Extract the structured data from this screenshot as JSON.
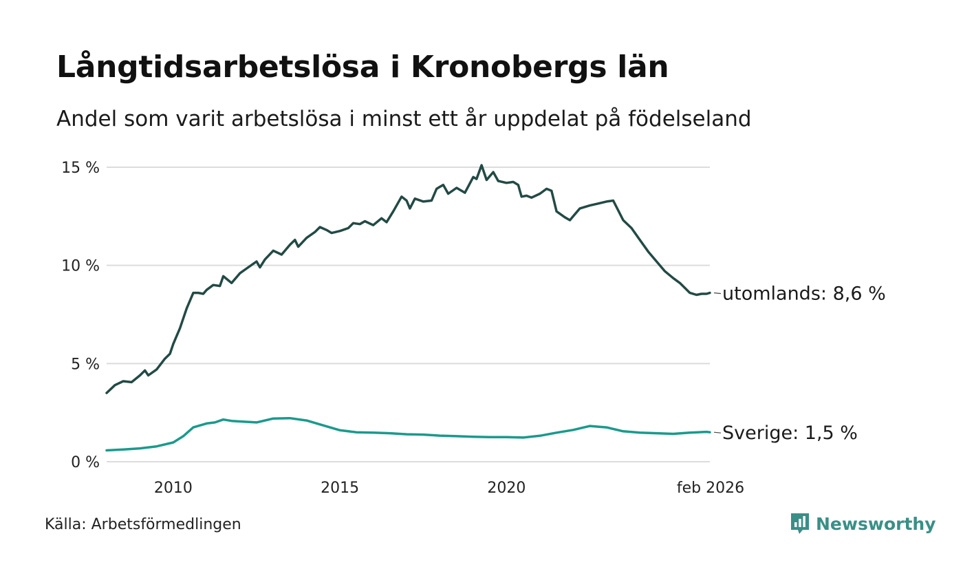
{
  "title": "Långtidsarbetslösa i Kronobergs län",
  "subtitle": "Andel som varit arbetslösa i minst ett år uppdelat på födelseland",
  "source": "Källa: Arbetsförmedlingen",
  "brand": {
    "name": "Newsworthy",
    "icon": "bar-chart-speech-bubble-icon",
    "color": "#3a8f86"
  },
  "chart_data": {
    "type": "line",
    "title": "Långtidsarbetslösa i Kronobergs län",
    "xlabel": "",
    "ylabel": "",
    "xlim": [
      2008.0,
      2026.1
    ],
    "ylim": [
      0,
      15
    ],
    "grid": true,
    "yticks": [
      {
        "value": 0,
        "label": "0 %"
      },
      {
        "value": 5,
        "label": "5 %"
      },
      {
        "value": 10,
        "label": "10 %"
      },
      {
        "value": 15,
        "label": "15 %"
      }
    ],
    "xticks": [
      {
        "value": 2010,
        "label": "2010"
      },
      {
        "value": 2015,
        "label": "2015"
      },
      {
        "value": 2020,
        "label": "2020"
      },
      {
        "value": 2026.1,
        "label": "feb 2026"
      }
    ],
    "series": [
      {
        "name": "utomlands",
        "color": "#234a44",
        "end_label": "utomlands: 8,6 %",
        "points": [
          [
            2008.0,
            3.5
          ],
          [
            2008.25,
            3.9
          ],
          [
            2008.5,
            4.1
          ],
          [
            2008.75,
            4.05
          ],
          [
            2009.0,
            4.4
          ],
          [
            2009.15,
            4.65
          ],
          [
            2009.25,
            4.4
          ],
          [
            2009.5,
            4.7
          ],
          [
            2009.75,
            5.25
          ],
          [
            2009.9,
            5.5
          ],
          [
            2010.0,
            6.0
          ],
          [
            2010.2,
            6.8
          ],
          [
            2010.4,
            7.8
          ],
          [
            2010.6,
            8.6
          ],
          [
            2010.75,
            8.6
          ],
          [
            2010.9,
            8.55
          ],
          [
            2011.0,
            8.75
          ],
          [
            2011.2,
            9.0
          ],
          [
            2011.4,
            8.95
          ],
          [
            2011.5,
            9.45
          ],
          [
            2011.75,
            9.1
          ],
          [
            2012.0,
            9.6
          ],
          [
            2012.25,
            9.9
          ],
          [
            2012.5,
            10.2
          ],
          [
            2012.6,
            9.9
          ],
          [
            2012.75,
            10.3
          ],
          [
            2013.0,
            10.75
          ],
          [
            2013.25,
            10.55
          ],
          [
            2013.5,
            11.05
          ],
          [
            2013.65,
            11.3
          ],
          [
            2013.75,
            10.95
          ],
          [
            2014.0,
            11.4
          ],
          [
            2014.25,
            11.7
          ],
          [
            2014.4,
            11.95
          ],
          [
            2014.6,
            11.8
          ],
          [
            2014.75,
            11.65
          ],
          [
            2015.0,
            11.75
          ],
          [
            2015.25,
            11.9
          ],
          [
            2015.4,
            12.15
          ],
          [
            2015.6,
            12.1
          ],
          [
            2015.75,
            12.25
          ],
          [
            2016.0,
            12.05
          ],
          [
            2016.25,
            12.4
          ],
          [
            2016.4,
            12.2
          ],
          [
            2016.6,
            12.75
          ],
          [
            2016.85,
            13.5
          ],
          [
            2017.0,
            13.3
          ],
          [
            2017.1,
            12.9
          ],
          [
            2017.25,
            13.4
          ],
          [
            2017.5,
            13.25
          ],
          [
            2017.75,
            13.3
          ],
          [
            2017.9,
            13.9
          ],
          [
            2018.0,
            14.0
          ],
          [
            2018.1,
            14.1
          ],
          [
            2018.25,
            13.65
          ],
          [
            2018.5,
            13.95
          ],
          [
            2018.75,
            13.7
          ],
          [
            2019.0,
            14.5
          ],
          [
            2019.1,
            14.4
          ],
          [
            2019.25,
            15.1
          ],
          [
            2019.4,
            14.35
          ],
          [
            2019.6,
            14.75
          ],
          [
            2019.75,
            14.3
          ],
          [
            2020.0,
            14.2
          ],
          [
            2020.2,
            14.25
          ],
          [
            2020.35,
            14.1
          ],
          [
            2020.45,
            13.5
          ],
          [
            2020.6,
            13.55
          ],
          [
            2020.75,
            13.45
          ],
          [
            2021.0,
            13.65
          ],
          [
            2021.2,
            13.9
          ],
          [
            2021.35,
            13.8
          ],
          [
            2021.5,
            12.75
          ],
          [
            2021.75,
            12.45
          ],
          [
            2021.9,
            12.3
          ],
          [
            2022.0,
            12.5
          ],
          [
            2022.2,
            12.9
          ],
          [
            2022.5,
            13.05
          ],
          [
            2022.75,
            13.15
          ],
          [
            2023.0,
            13.25
          ],
          [
            2023.2,
            13.3
          ],
          [
            2023.5,
            12.3
          ],
          [
            2023.75,
            11.9
          ],
          [
            2024.0,
            11.3
          ],
          [
            2024.25,
            10.7
          ],
          [
            2024.5,
            10.2
          ],
          [
            2024.75,
            9.7
          ],
          [
            2025.0,
            9.35
          ],
          [
            2025.2,
            9.1
          ],
          [
            2025.5,
            8.6
          ],
          [
            2025.7,
            8.5
          ],
          [
            2025.85,
            8.55
          ],
          [
            2026.0,
            8.55
          ],
          [
            2026.1,
            8.6
          ]
        ]
      },
      {
        "name": "Sverige",
        "color": "#1a9a8c",
        "end_label": "Sverige: 1,5 %",
        "points": [
          [
            2008.0,
            0.58
          ],
          [
            2008.5,
            0.62
          ],
          [
            2009.0,
            0.68
          ],
          [
            2009.5,
            0.78
          ],
          [
            2010.0,
            0.98
          ],
          [
            2010.3,
            1.3
          ],
          [
            2010.6,
            1.75
          ],
          [
            2011.0,
            1.95
          ],
          [
            2011.25,
            2.0
          ],
          [
            2011.5,
            2.15
          ],
          [
            2011.75,
            2.08
          ],
          [
            2012.0,
            2.05
          ],
          [
            2012.5,
            2.0
          ],
          [
            2013.0,
            2.2
          ],
          [
            2013.5,
            2.22
          ],
          [
            2014.0,
            2.1
          ],
          [
            2014.5,
            1.85
          ],
          [
            2015.0,
            1.6
          ],
          [
            2015.5,
            1.5
          ],
          [
            2016.0,
            1.48
          ],
          [
            2016.5,
            1.45
          ],
          [
            2017.0,
            1.4
          ],
          [
            2017.5,
            1.38
          ],
          [
            2018.0,
            1.33
          ],
          [
            2018.5,
            1.3
          ],
          [
            2019.0,
            1.27
          ],
          [
            2019.5,
            1.25
          ],
          [
            2020.0,
            1.25
          ],
          [
            2020.5,
            1.23
          ],
          [
            2021.0,
            1.32
          ],
          [
            2021.5,
            1.48
          ],
          [
            2022.0,
            1.62
          ],
          [
            2022.5,
            1.82
          ],
          [
            2023.0,
            1.75
          ],
          [
            2023.5,
            1.55
          ],
          [
            2024.0,
            1.48
          ],
          [
            2024.5,
            1.45
          ],
          [
            2025.0,
            1.42
          ],
          [
            2025.5,
            1.48
          ],
          [
            2026.0,
            1.52
          ],
          [
            2026.1,
            1.5
          ]
        ]
      }
    ]
  }
}
